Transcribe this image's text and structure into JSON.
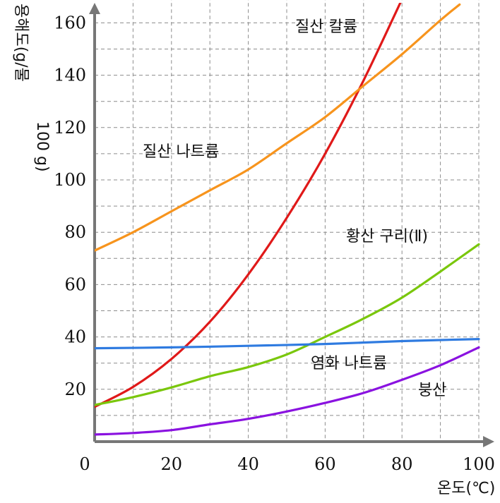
{
  "chart_data": {
    "type": "line",
    "xlabel": "온도(℃)",
    "ylabel_line1": "용해도(g/물",
    "ylabel_line2": "100 g)",
    "xlim": [
      0,
      100
    ],
    "ylim": [
      0,
      165
    ],
    "xticks": [
      0,
      20,
      40,
      60,
      80,
      100
    ],
    "xtick_labels": [
      "0",
      "20",
      "40",
      "60",
      "80",
      "100"
    ],
    "yticks": [
      20,
      40,
      60,
      80,
      100,
      120,
      140,
      160
    ],
    "ytick_labels": [
      "20",
      "40",
      "60",
      "80",
      "100",
      "120",
      "140",
      "160"
    ],
    "grid": true,
    "series": [
      {
        "name": "질산 칼륨",
        "color": "#e01919",
        "x": [
          0,
          10,
          20,
          30,
          40,
          50,
          60,
          70,
          80
        ],
        "y": [
          13.3,
          20.9,
          31.6,
          45.8,
          63.9,
          85.5,
          110,
          138,
          169
        ]
      },
      {
        "name": "질산 나트륨",
        "color": "#f7941d",
        "x": [
          0,
          10,
          20,
          30,
          40,
          50,
          60,
          70,
          80,
          90,
          95
        ],
        "y": [
          73,
          80,
          88,
          96,
          104,
          114,
          124,
          136,
          148,
          161,
          167
        ]
      },
      {
        "name": "황산 구리(Ⅱ)",
        "color": "#7ac70c",
        "x": [
          0,
          10,
          20,
          30,
          40,
          50,
          60,
          70,
          80,
          90,
          100
        ],
        "y": [
          14,
          17,
          20.7,
          25,
          28.5,
          33.3,
          40,
          47,
          55,
          65,
          75.4
        ]
      },
      {
        "name": "염화 나트륨",
        "color": "#2f7be0",
        "x": [
          0,
          20,
          40,
          60,
          80,
          100
        ],
        "y": [
          35.7,
          36,
          36.6,
          37.3,
          38.4,
          39.2
        ]
      },
      {
        "name": "붕산",
        "color": "#8a12e0",
        "x": [
          0,
          10,
          20,
          30,
          40,
          50,
          60,
          70,
          80,
          90,
          100
        ],
        "y": [
          2.7,
          3.3,
          4.4,
          6.6,
          8.7,
          11.5,
          14.8,
          18.6,
          23.6,
          29.2,
          36
        ]
      }
    ]
  }
}
